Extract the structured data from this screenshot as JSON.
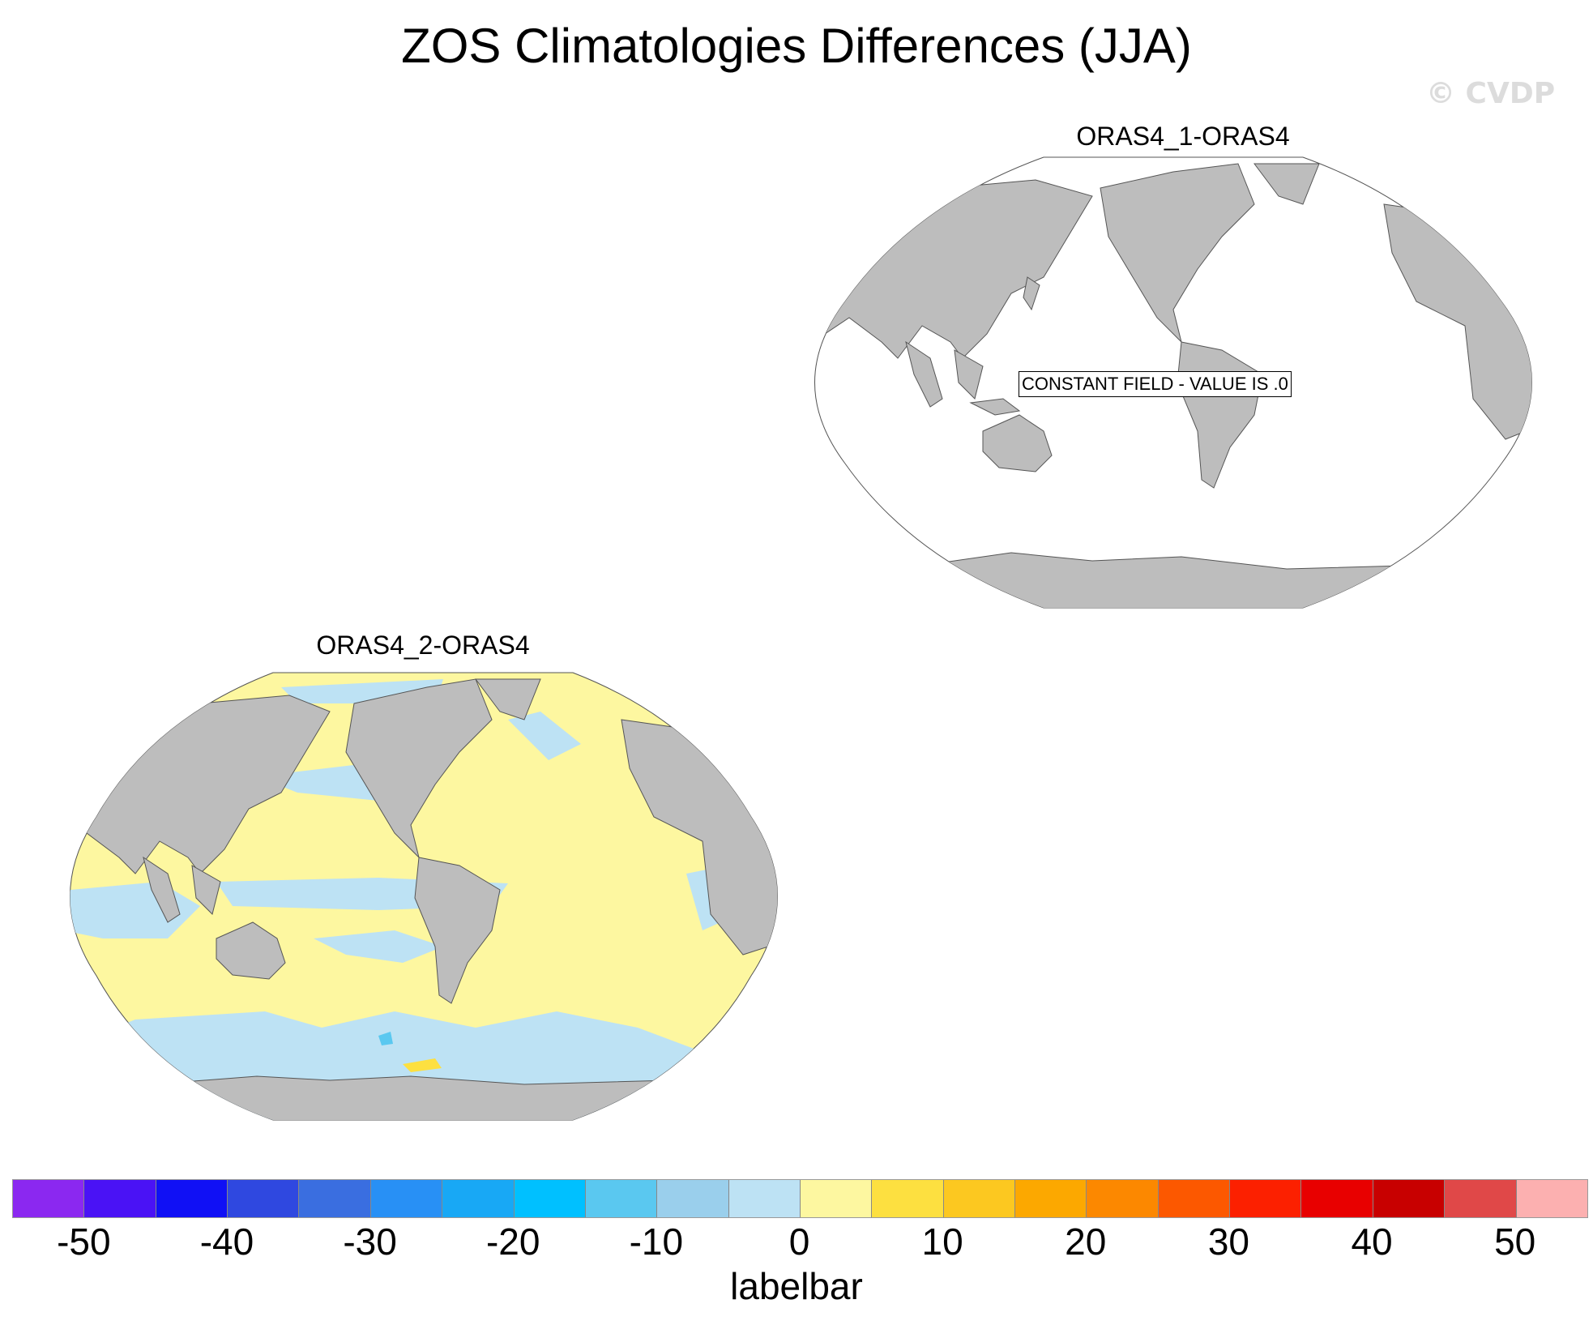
{
  "figure": {
    "title": "ZOS Climatologies Differences (JJA)",
    "watermark": "© CVDP"
  },
  "panels": [
    {
      "title": "ORAS4_1-ORAS4",
      "annotation": "CONSTANT FIELD - VALUE IS .0",
      "field": "constant zero"
    },
    {
      "title": "ORAS4_2-ORAS4",
      "field": "mostly 0 to 5 (light yellow) with bands of -5 to 0 (light blue) in equatorial Pacific, Indian Ocean and Southern Ocean; a small 5-10 patch in the South Pacific"
    }
  ],
  "colors": {
    "land": "#bdbdbd",
    "ocean_background": "#ffffff",
    "coast": "#555555"
  },
  "labelbar": {
    "title": "labelbar",
    "tick_labels": [
      "-50",
      "-40",
      "-30",
      "-20",
      "-10",
      "0",
      "10",
      "20",
      "30",
      "40",
      "50"
    ],
    "levels": [
      -50,
      -45,
      -40,
      -35,
      -30,
      -25,
      -20,
      -15,
      -10,
      -5,
      0,
      5,
      10,
      15,
      20,
      25,
      30,
      35,
      40,
      45,
      50
    ],
    "colors": [
      "#8b28f0",
      "#4a12f5",
      "#1010f5",
      "#2f48e0",
      "#3a6ee0",
      "#2890f5",
      "#18a8f5",
      "#00c0ff",
      "#5ac8f0",
      "#9acfec",
      "#bde2f4",
      "#fdf7a0",
      "#fde040",
      "#fcc820",
      "#fca800",
      "#fc8800",
      "#fc5800",
      "#fc2000",
      "#e80000",
      "#c80000",
      "#e04848",
      "#fcb0b0"
    ]
  }
}
